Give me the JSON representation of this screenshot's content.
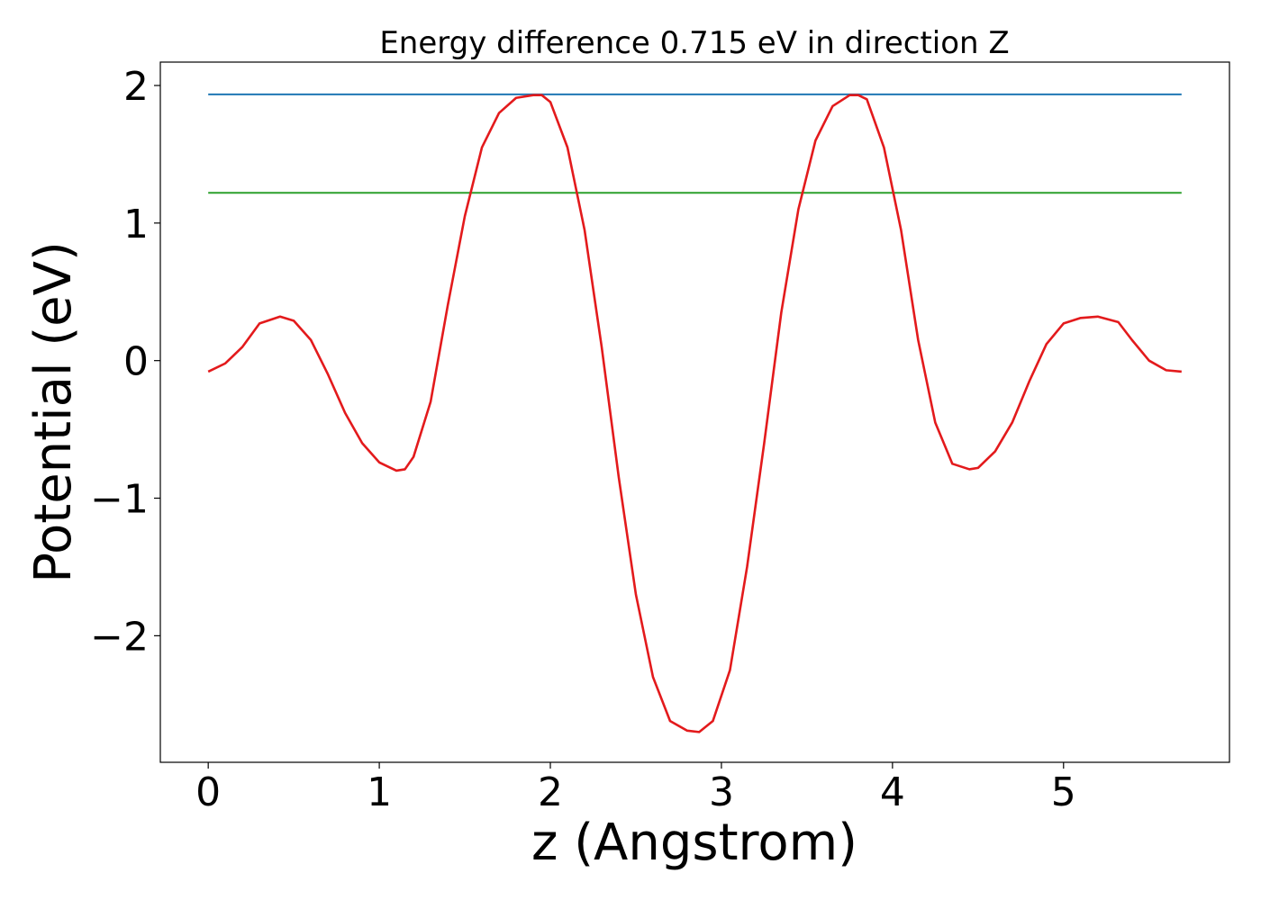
{
  "chart_data": {
    "type": "line",
    "title": "Energy difference 0.715 eV in direction Z",
    "xlabel": "z (Angstrom)",
    "ylabel": "Potential (eV)",
    "xlim": [
      -0.28,
      5.97
    ],
    "ylim": [
      -2.92,
      2.17
    ],
    "xticks": [
      0,
      1,
      2,
      3,
      4,
      5
    ],
    "yticks": [
      -2,
      -1,
      0,
      1,
      2
    ],
    "ytick_labels": [
      "−2",
      "−1",
      "0",
      "1",
      "2"
    ],
    "grid": false,
    "legend": "none",
    "series": [
      {
        "color": "#1f77b4",
        "x": [
          0,
          5.69
        ],
        "y": [
          1.935,
          1.935
        ]
      },
      {
        "color": "#2ca02c",
        "x": [
          0,
          5.69
        ],
        "y": [
          1.22,
          1.22
        ]
      },
      {
        "color": "#e31a1c",
        "x": [
          0,
          0.1,
          0.2,
          0.3,
          0.42,
          0.5,
          0.6,
          0.7,
          0.8,
          0.9,
          1.0,
          1.1,
          1.15,
          1.2,
          1.3,
          1.4,
          1.5,
          1.6,
          1.7,
          1.8,
          1.9,
          1.95,
          2.0,
          2.1,
          2.2,
          2.3,
          2.4,
          2.5,
          2.6,
          2.7,
          2.8,
          2.87,
          2.95,
          3.05,
          3.15,
          3.25,
          3.35,
          3.45,
          3.55,
          3.65,
          3.75,
          3.8,
          3.85,
          3.95,
          4.05,
          4.15,
          4.25,
          4.35,
          4.45,
          4.5,
          4.6,
          4.7,
          4.8,
          4.9,
          5.0,
          5.1,
          5.2,
          5.32,
          5.4,
          5.5,
          5.6,
          5.69
        ],
        "y": [
          -0.08,
          -0.02,
          0.1,
          0.27,
          0.32,
          0.29,
          0.15,
          -0.1,
          -0.38,
          -0.6,
          -0.74,
          -0.8,
          -0.79,
          -0.7,
          -0.3,
          0.4,
          1.05,
          1.55,
          1.8,
          1.91,
          1.93,
          1.93,
          1.88,
          1.55,
          0.95,
          0.1,
          -0.85,
          -1.7,
          -2.3,
          -2.62,
          -2.69,
          -2.7,
          -2.62,
          -2.25,
          -1.5,
          -0.6,
          0.35,
          1.1,
          1.6,
          1.85,
          1.93,
          1.93,
          1.9,
          1.55,
          0.95,
          0.15,
          -0.45,
          -0.75,
          -0.79,
          -0.78,
          -0.66,
          -0.45,
          -0.15,
          0.12,
          0.27,
          0.31,
          0.32,
          0.28,
          0.15,
          0.0,
          -0.07,
          -0.08
        ]
      }
    ]
  }
}
